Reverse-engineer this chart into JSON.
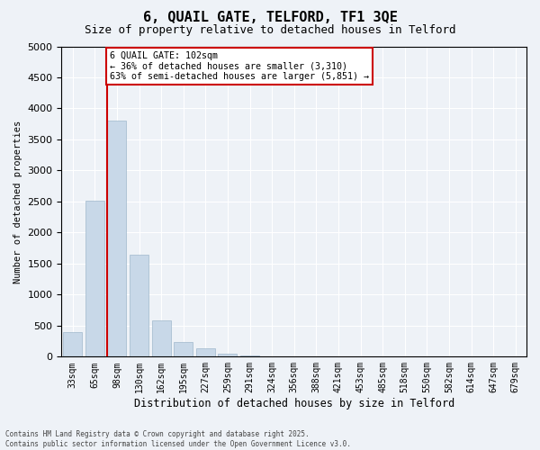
{
  "title": "6, QUAIL GATE, TELFORD, TF1 3QE",
  "subtitle": "Size of property relative to detached houses in Telford",
  "xlabel": "Distribution of detached houses by size in Telford",
  "ylabel": "Number of detached properties",
  "bar_color": "#c8d8e8",
  "bar_edge_color": "#a0b8cc",
  "background_color": "#eef2f7",
  "grid_color": "#ffffff",
  "bin_labels": [
    "33sqm",
    "65sqm",
    "98sqm",
    "130sqm",
    "162sqm",
    "195sqm",
    "227sqm",
    "259sqm",
    "291sqm",
    "324sqm",
    "356sqm",
    "388sqm",
    "421sqm",
    "453sqm",
    "485sqm",
    "518sqm",
    "550sqm",
    "582sqm",
    "614sqm",
    "647sqm",
    "679sqm"
  ],
  "values": [
    390,
    2520,
    3800,
    1640,
    580,
    230,
    130,
    55,
    25,
    10,
    5,
    2,
    0,
    0,
    0,
    0,
    0,
    0,
    0,
    0,
    0
  ],
  "ylim": [
    0,
    5000
  ],
  "yticks": [
    0,
    500,
    1000,
    1500,
    2000,
    2500,
    3000,
    3500,
    4000,
    4500,
    5000
  ],
  "property_bin_index": 2,
  "annotation_line1": "6 QUAIL GATE: 102sqm",
  "annotation_line2": "← 36% of detached houses are smaller (3,310)",
  "annotation_line3": "63% of semi-detached houses are larger (5,851) →",
  "annotation_box_color": "#ffffff",
  "annotation_border_color": "#cc0000",
  "red_line_color": "#cc0000",
  "footer_line1": "Contains HM Land Registry data © Crown copyright and database right 2025.",
  "footer_line2": "Contains public sector information licensed under the Open Government Licence v3.0."
}
